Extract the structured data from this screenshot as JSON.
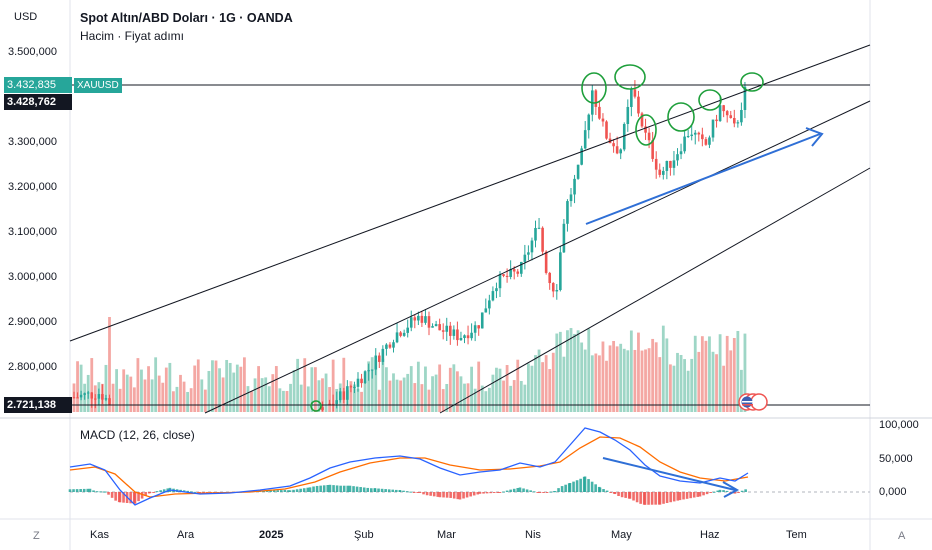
{
  "header": {
    "currency": "USD",
    "title": "Spot Altın/ABD Doları · 1G · OANDA",
    "subtitle": "Hacim · Fiyat adımı",
    "symbol": "XAUUSD"
  },
  "price_axis": {
    "ticks": [
      "3.500,000",
      "3.300,000",
      "3.200,000",
      "3.100,000",
      "3.000,000",
      "2.900,000",
      "2.800,000"
    ],
    "current_price": "3.432,835",
    "crosshair_price": "3.428,762",
    "lower_line_price": "2.721,138"
  },
  "macd": {
    "label": "MACD (12, 26, close)",
    "ticks": [
      "100,000",
      "50,000",
      "0,000"
    ]
  },
  "time_axis": {
    "labels": [
      "Kas",
      "Ara",
      "2025",
      "Şub",
      "Mar",
      "Nis",
      "May",
      "Haz",
      "Tem"
    ]
  },
  "corners": {
    "left": "Z",
    "right": "A"
  },
  "colors": {
    "up": "#26a69a",
    "down": "#ef5350",
    "vol_up": "#9ed6c6",
    "vol_down": "#f4a7a3",
    "macd_line": "#2962ff",
    "signal_line": "#ff6d00",
    "annotation_green": "#1e9f3b",
    "annotation_blue": "#2f6fd6",
    "current_tag": "#26a69a",
    "crosshair_tag": "#131722"
  }
}
